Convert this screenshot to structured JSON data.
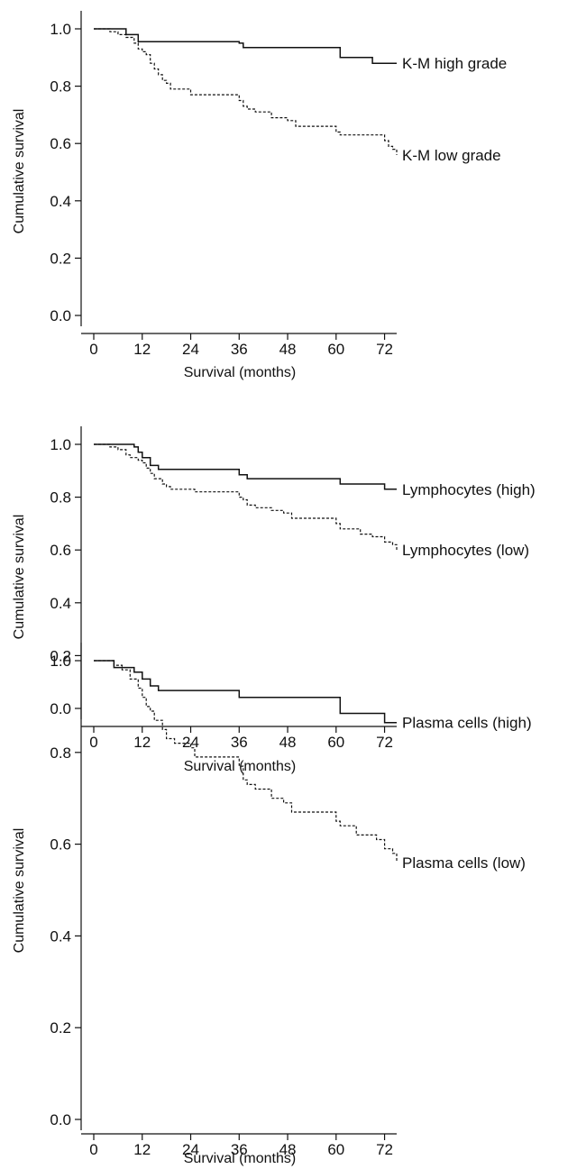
{
  "chart_data": [
    {
      "type": "line",
      "xlabel": "Survival (months)",
      "ylabel": "Cumulative survival",
      "xlim": [
        0,
        75
      ],
      "ylim": [
        0,
        1.0
      ],
      "x_ticks": [
        0,
        12,
        24,
        36,
        48,
        60,
        72
      ],
      "y_ticks": [
        "0.0",
        "0.2",
        "0.4",
        "0.6",
        "0.8",
        "1.0"
      ],
      "grid": false,
      "series": [
        {
          "name": "K-M high grade",
          "style": "solid",
          "x": [
            0,
            8,
            11,
            36,
            37,
            61,
            69,
            75
          ],
          "y": [
            1.0,
            0.98,
            0.955,
            0.95,
            0.935,
            0.9,
            0.88,
            0.88
          ]
        },
        {
          "name": "K-M low grade",
          "style": "dashed",
          "x": [
            0,
            4,
            6,
            8,
            10,
            11,
            12,
            13,
            14,
            15,
            16,
            17,
            18,
            19,
            20,
            24,
            36,
            37,
            38,
            40,
            44,
            48,
            50,
            60,
            61,
            72,
            73,
            74,
            75
          ],
          "y": [
            1.0,
            0.99,
            0.98,
            0.97,
            0.95,
            0.93,
            0.92,
            0.91,
            0.88,
            0.86,
            0.84,
            0.82,
            0.81,
            0.79,
            0.79,
            0.77,
            0.75,
            0.73,
            0.72,
            0.71,
            0.69,
            0.68,
            0.66,
            0.64,
            0.63,
            0.61,
            0.59,
            0.58,
            0.56
          ]
        }
      ]
    },
    {
      "type": "line",
      "xlabel": "Survival (months)",
      "ylabel": "Cumulative survival",
      "xlim": [
        0,
        75
      ],
      "ylim": [
        0,
        1.0
      ],
      "x_ticks": [
        0,
        12,
        24,
        36,
        48,
        60,
        72
      ],
      "y_ticks": [
        "0.0",
        "0.2",
        "0.4",
        "0.6",
        "0.8",
        "1.0"
      ],
      "grid": false,
      "series": [
        {
          "name": "Lymphocytes (high)",
          "style": "solid",
          "x": [
            0,
            10,
            11,
            12,
            14,
            16,
            36,
            38,
            61,
            72,
            75
          ],
          "y": [
            1.0,
            0.99,
            0.97,
            0.95,
            0.92,
            0.905,
            0.885,
            0.87,
            0.85,
            0.83,
            0.83
          ]
        },
        {
          "name": "Lymphocytes (low)",
          "style": "dashed",
          "x": [
            0,
            4,
            6,
            8,
            9,
            11,
            12,
            13,
            14,
            15,
            17,
            18,
            19,
            25,
            36,
            37,
            38,
            40,
            44,
            47,
            49,
            60,
            61,
            66,
            69,
            72,
            74,
            75
          ],
          "y": [
            1.0,
            0.99,
            0.98,
            0.96,
            0.95,
            0.94,
            0.93,
            0.91,
            0.89,
            0.87,
            0.85,
            0.84,
            0.83,
            0.82,
            0.8,
            0.79,
            0.77,
            0.76,
            0.75,
            0.74,
            0.72,
            0.7,
            0.68,
            0.66,
            0.65,
            0.63,
            0.62,
            0.6
          ]
        }
      ]
    },
    {
      "type": "line",
      "xlabel": "Survival (months)",
      "ylabel": "Cumulative survival",
      "xlim": [
        0,
        75
      ],
      "ylim": [
        0,
        1.0
      ],
      "x_ticks": [
        0,
        12,
        24,
        36,
        48,
        60,
        72
      ],
      "y_ticks": [
        "0.0",
        "0.2",
        "0.4",
        "0.6",
        "0.8",
        "1.0"
      ],
      "grid": false,
      "series": [
        {
          "name": "Plasma cells (high)",
          "style": "solid",
          "x": [
            0,
            5,
            10,
            12,
            14,
            16,
            36,
            61,
            72,
            75
          ],
          "y": [
            1.0,
            0.985,
            0.975,
            0.96,
            0.945,
            0.935,
            0.92,
            0.885,
            0.865,
            0.865
          ]
        },
        {
          "name": "Plasma cells (low)",
          "style": "dashed",
          "x": [
            0,
            5,
            7,
            9,
            11,
            12,
            13,
            14,
            15,
            17,
            18,
            20,
            24,
            25,
            36,
            37,
            38,
            40,
            44,
            47,
            49,
            60,
            61,
            65,
            70,
            72,
            74,
            75
          ],
          "y": [
            1.0,
            0.99,
            0.98,
            0.96,
            0.94,
            0.92,
            0.9,
            0.89,
            0.87,
            0.85,
            0.83,
            0.82,
            0.81,
            0.79,
            0.77,
            0.74,
            0.73,
            0.72,
            0.7,
            0.69,
            0.67,
            0.65,
            0.64,
            0.62,
            0.61,
            0.59,
            0.58,
            0.56
          ]
        }
      ]
    }
  ]
}
